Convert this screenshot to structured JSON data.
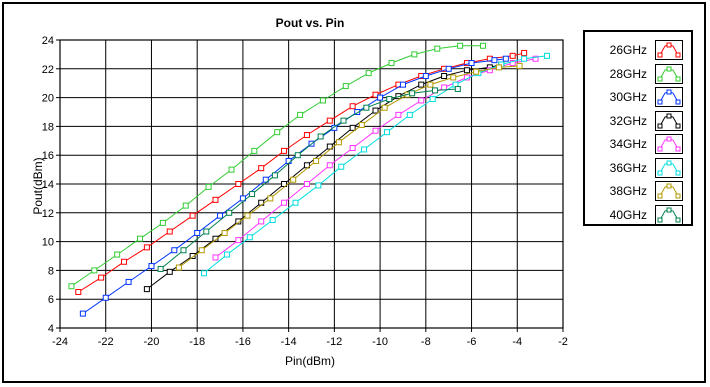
{
  "chart_data": {
    "type": "line",
    "title": "Pout vs. Pin",
    "xlabel": "Pin(dBm)",
    "ylabel": "Pout(dBm)",
    "xlim": [
      -24,
      -2
    ],
    "ylim": [
      4,
      24
    ],
    "xticks": [
      "-24",
      "-22",
      "-20",
      "-18",
      "-16",
      "-14",
      "-12",
      "-10",
      "-8",
      "-6",
      "-4",
      "-2"
    ],
    "yticks": [
      "4",
      "6",
      "8",
      "10",
      "12",
      "14",
      "16",
      "18",
      "20",
      "22",
      "24"
    ],
    "grid": true,
    "legend_position": "right",
    "series": [
      {
        "name": "26GHz",
        "color": "#ff0000",
        "x": [
          -23.2,
          -22.2,
          -21.2,
          -20.2,
          -19.2,
          -18.2,
          -17.2,
          -16.2,
          -15.2,
          -14.2,
          -13.2,
          -12.2,
          -11.2,
          -10.2,
          -9.2,
          -8.2,
          -7.2,
          -6.2,
          -5.2,
          -4.2,
          -3.7
        ],
        "y": [
          6.5,
          7.5,
          8.6,
          9.6,
          10.7,
          11.8,
          12.9,
          14.0,
          15.1,
          16.3,
          17.4,
          18.4,
          19.4,
          20.2,
          20.9,
          21.5,
          22.0,
          22.4,
          22.7,
          22.9,
          23.1
        ]
      },
      {
        "name": "28GHz",
        "color": "#33cc33",
        "x": [
          -23.5,
          -22.5,
          -21.5,
          -20.5,
          -19.5,
          -18.5,
          -17.5,
          -16.5,
          -15.5,
          -14.5,
          -13.5,
          -12.5,
          -11.5,
          -10.5,
          -9.5,
          -8.5,
          -7.5,
          -6.5,
          -5.5
        ],
        "y": [
          6.9,
          8.0,
          9.1,
          10.2,
          11.3,
          12.5,
          13.8,
          15.0,
          16.3,
          17.6,
          18.8,
          19.8,
          20.8,
          21.7,
          22.4,
          23.0,
          23.4,
          23.6,
          23.6
        ]
      },
      {
        "name": "30GHz",
        "color": "#0033ff",
        "x": [
          -23.0,
          -22.0,
          -21.0,
          -20.0,
          -19.0,
          -18.0,
          -17.0,
          -16.0,
          -15.0,
          -14.0,
          -13.0,
          -12.0,
          -11.0,
          -10.0,
          -9.0,
          -8.0,
          -7.0,
          -6.0,
          -5.0,
          -4.5
        ],
        "y": [
          5.0,
          6.1,
          7.2,
          8.3,
          9.4,
          10.6,
          11.8,
          13.0,
          14.3,
          15.6,
          16.8,
          17.9,
          19.0,
          20.0,
          20.9,
          21.5,
          22.0,
          22.4,
          22.6,
          22.7
        ]
      },
      {
        "name": "32GHz",
        "color": "#000000",
        "x": [
          -20.2,
          -19.2,
          -18.2,
          -17.2,
          -16.2,
          -15.2,
          -14.2,
          -13.2,
          -12.2,
          -11.2,
          -10.2,
          -9.2,
          -8.2,
          -7.2,
          -6.2,
          -5.2,
          -4.7
        ],
        "y": [
          6.7,
          7.9,
          9.0,
          10.2,
          11.4,
          12.7,
          14.0,
          15.3,
          16.6,
          17.9,
          19.1,
          20.1,
          20.9,
          21.5,
          21.9,
          22.1,
          22.3
        ]
      },
      {
        "name": "34GHz",
        "color": "#ff33ff",
        "x": [
          -17.2,
          -16.2,
          -15.2,
          -14.2,
          -13.2,
          -12.2,
          -11.2,
          -10.2,
          -9.2,
          -8.2,
          -7.2,
          -6.2,
          -5.2,
          -4.2,
          -3.2
        ],
        "y": [
          8.9,
          10.1,
          11.4,
          12.7,
          14.0,
          15.3,
          16.5,
          17.7,
          18.8,
          19.8,
          20.7,
          21.4,
          21.9,
          22.4,
          22.7
        ]
      },
      {
        "name": "36GHz",
        "color": "#00dddd",
        "x": [
          -17.7,
          -16.7,
          -15.7,
          -14.7,
          -13.7,
          -12.7,
          -11.7,
          -10.7,
          -9.7,
          -8.7,
          -7.7,
          -6.7,
          -5.7,
          -4.7,
          -3.7,
          -2.7
        ],
        "y": [
          7.8,
          9.1,
          10.3,
          11.5,
          12.7,
          13.9,
          15.2,
          16.4,
          17.6,
          18.8,
          19.9,
          20.9,
          21.7,
          22.3,
          22.7,
          22.9
        ]
      },
      {
        "name": "38GHz",
        "color": "#b39900",
        "x": [
          -18.8,
          -17.8,
          -16.8,
          -15.8,
          -14.8,
          -13.8,
          -12.8,
          -11.8,
          -10.8,
          -9.8,
          -8.8,
          -7.8,
          -6.8,
          -5.8,
          -4.8,
          -3.9
        ],
        "y": [
          8.2,
          9.4,
          10.6,
          11.8,
          13.0,
          14.3,
          15.6,
          16.9,
          18.1,
          19.3,
          20.2,
          20.9,
          21.4,
          21.8,
          22.1,
          22.2
        ]
      },
      {
        "name": "40GHz",
        "color": "#00804d",
        "x": [
          -19.6,
          -18.6,
          -17.6,
          -16.6,
          -15.6,
          -14.6,
          -13.6,
          -12.6,
          -11.6,
          -10.6,
          -9.6,
          -8.6,
          -7.6,
          -6.6
        ],
        "y": [
          8.1,
          9.4,
          10.7,
          12.0,
          13.3,
          14.6,
          16.0,
          17.3,
          18.4,
          19.3,
          19.9,
          20.3,
          20.5,
          20.6
        ]
      }
    ]
  }
}
